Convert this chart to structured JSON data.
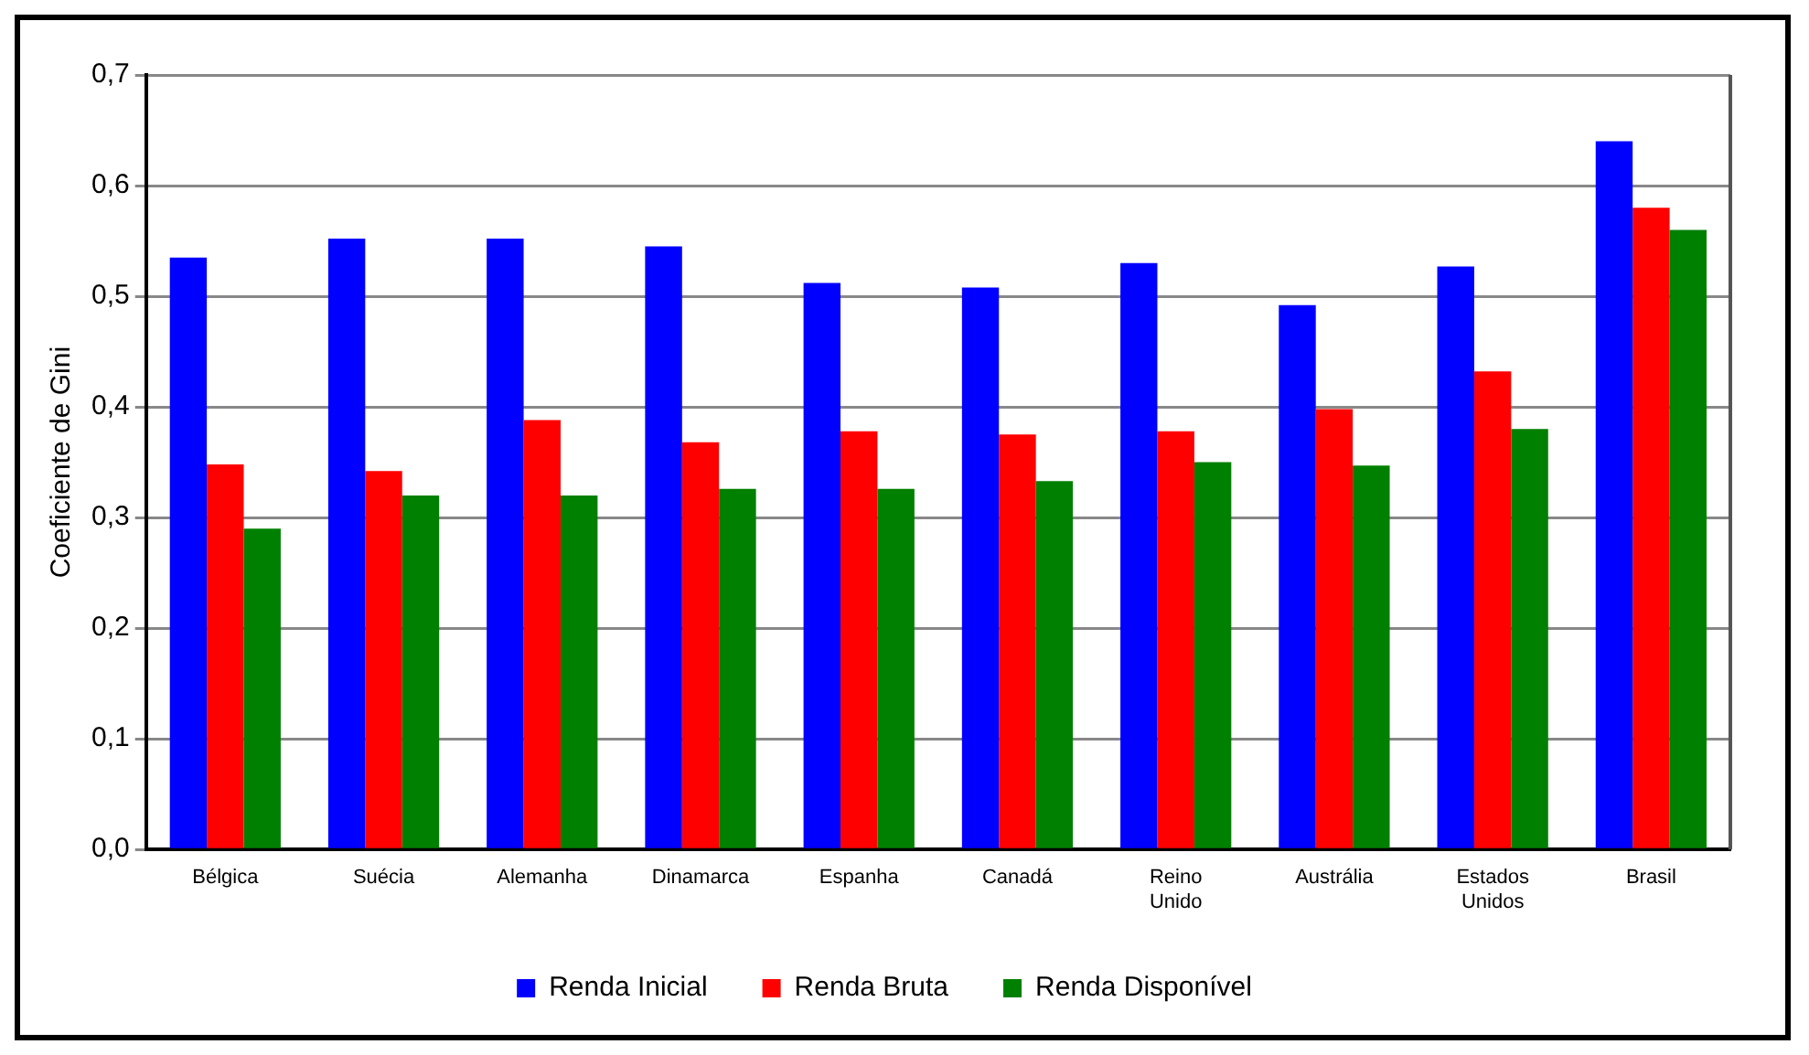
{
  "chart_data": {
    "type": "bar",
    "ylabel": "Coeficiente de Gini",
    "categories": [
      "Bélgica",
      "Suécia",
      "Alemanha",
      "Dinamarca",
      "Espanha",
      "Canadá",
      "Reino Unido",
      "Austrália",
      "Estados Unidos",
      "Brasil"
    ],
    "series": [
      {
        "name": "Renda Inicial",
        "color": "#0000ff",
        "values": [
          0.535,
          0.552,
          0.552,
          0.545,
          0.512,
          0.508,
          0.53,
          0.492,
          0.527,
          0.64
        ]
      },
      {
        "name": "Renda Bruta",
        "color": "#ff0000",
        "values": [
          0.348,
          0.342,
          0.388,
          0.368,
          0.378,
          0.375,
          0.378,
          0.398,
          0.432,
          0.58
        ]
      },
      {
        "name": "Renda Disponível",
        "color": "#008000",
        "values": [
          0.29,
          0.32,
          0.32,
          0.326,
          0.326,
          0.333,
          0.35,
          0.347,
          0.38,
          0.56
        ]
      }
    ],
    "ylim": [
      0,
      0.7
    ],
    "yticks": [
      {
        "value": 0,
        "label": "0,0"
      },
      {
        "value": 0.1,
        "label": "0,1"
      },
      {
        "value": 0.2,
        "label": "0,2"
      },
      {
        "value": 0.3,
        "label": "0,3"
      },
      {
        "value": 0.4,
        "label": "0,4"
      },
      {
        "value": 0.5,
        "label": "0,5"
      },
      {
        "value": 0.6,
        "label": "0,6"
      },
      {
        "value": 0.7,
        "label": "0,7"
      }
    ],
    "grid": "y",
    "legend": "bottom"
  }
}
